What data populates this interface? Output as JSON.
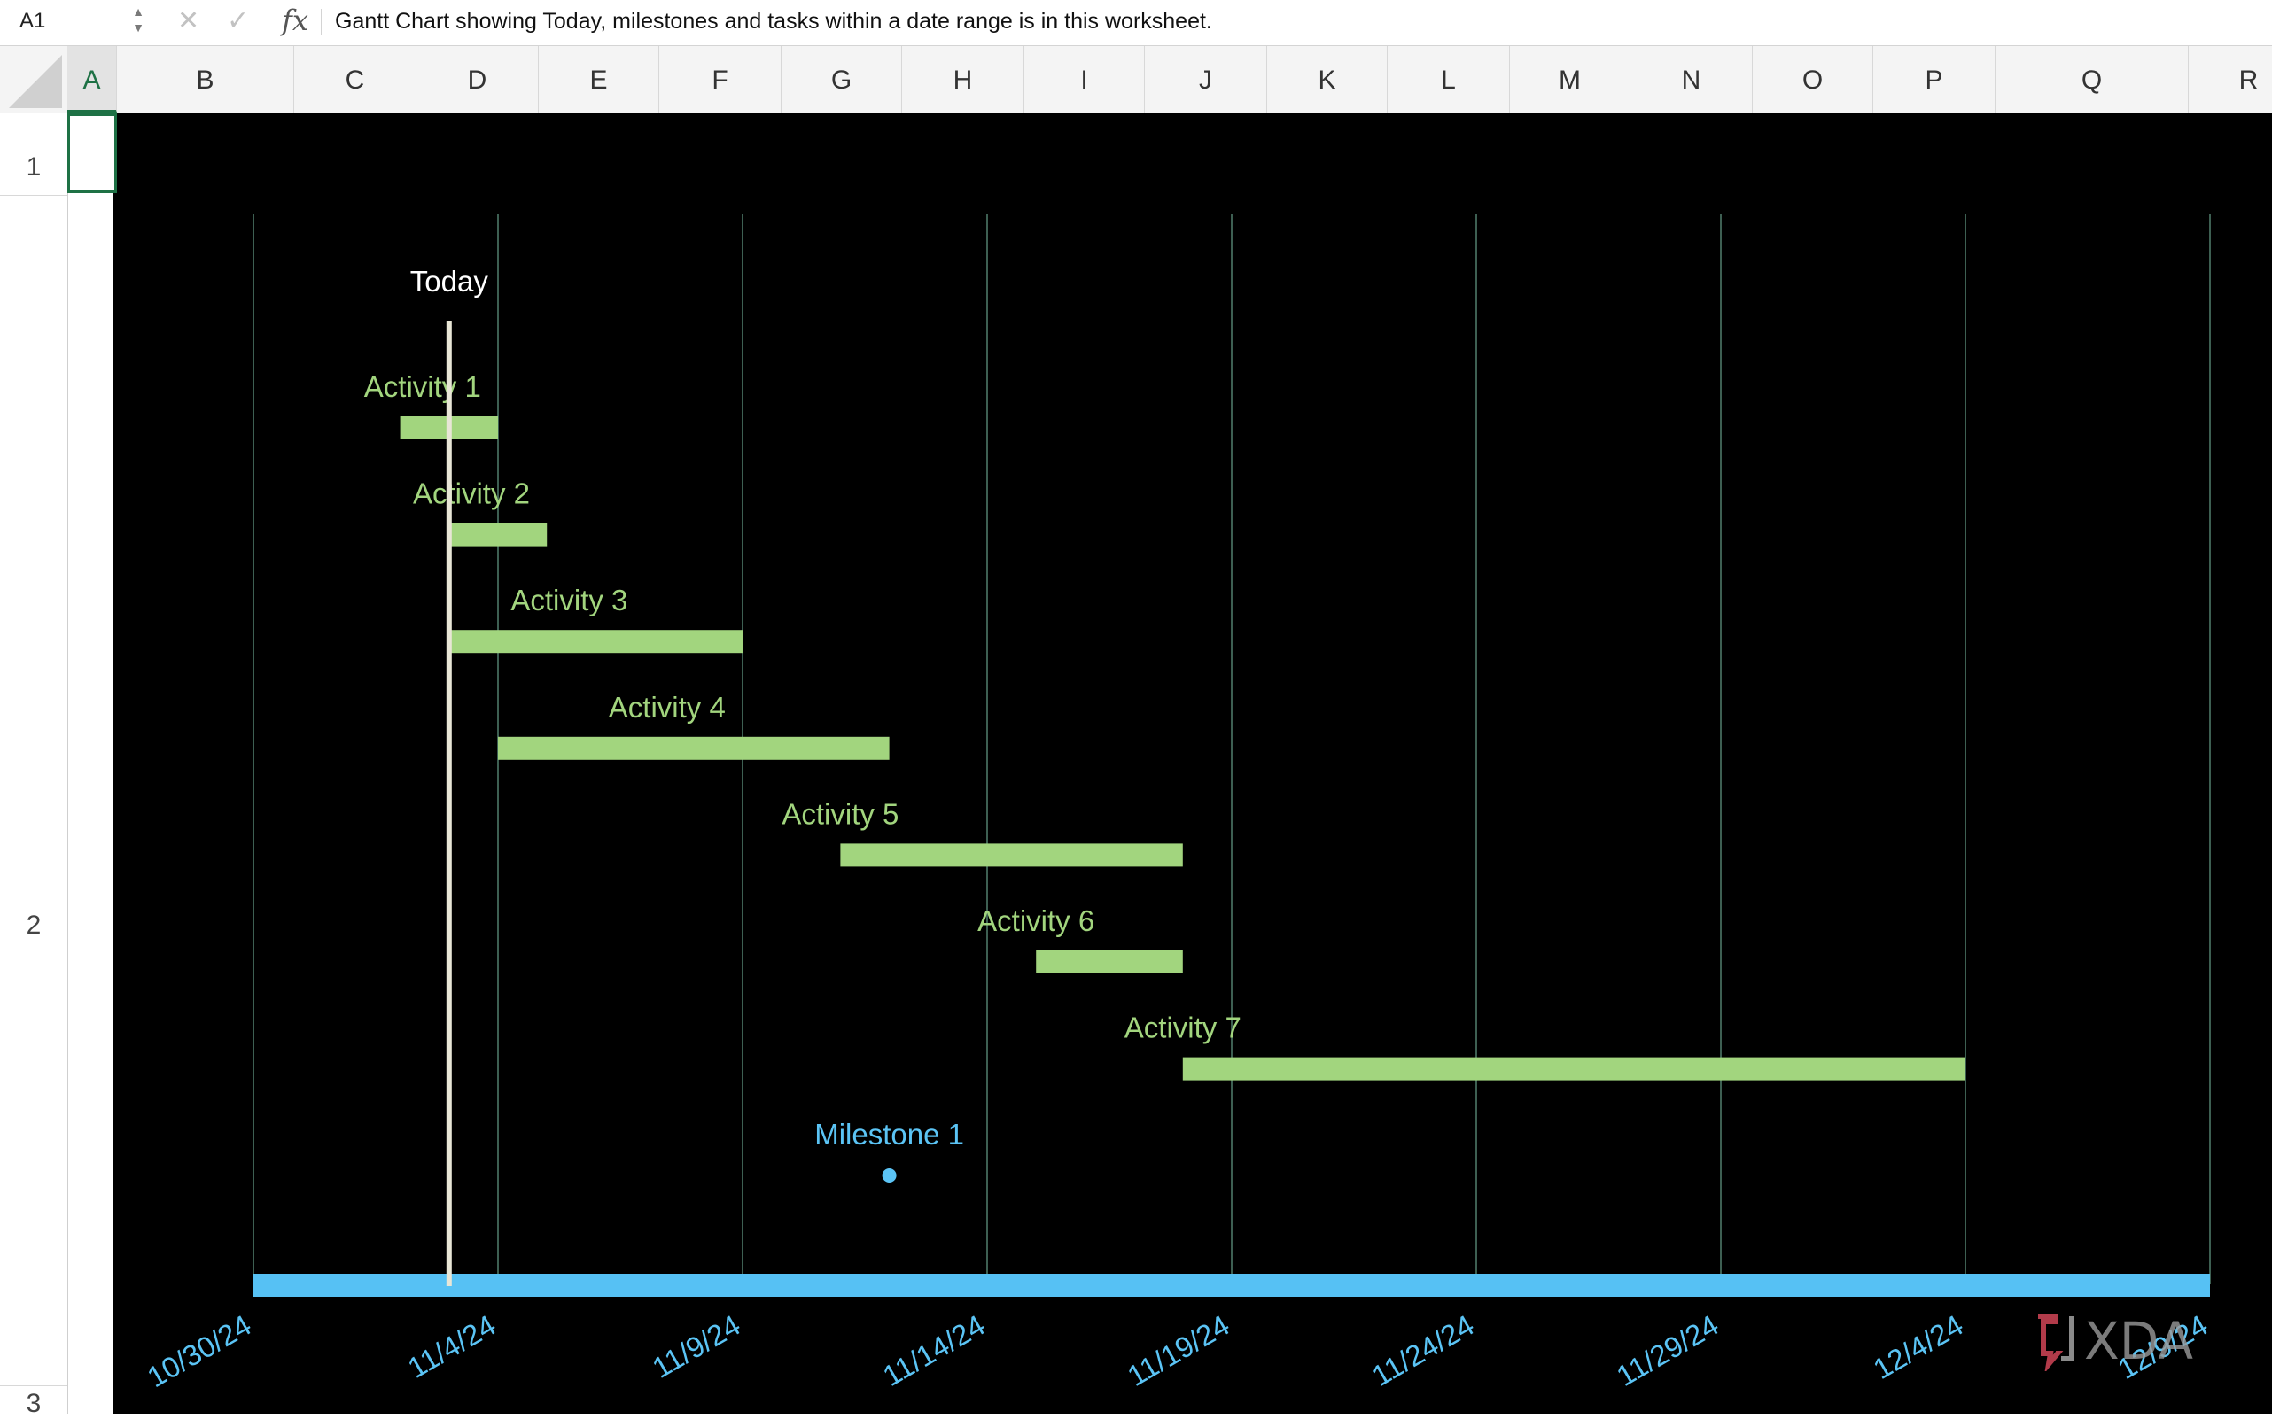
{
  "formula_bar": {
    "name_box": "A1",
    "cancel_icon": "x-icon",
    "enter_icon": "check-icon",
    "fx_label": "fx",
    "formula_text": "Gantt Chart showing Today, milestones and tasks within a date range is in this worksheet."
  },
  "columns": [
    "A",
    "B",
    "C",
    "D",
    "E",
    "F",
    "G",
    "H",
    "I",
    "J",
    "K",
    "L",
    "M",
    "N",
    "O",
    "P",
    "Q",
    "R"
  ],
  "active_column": "A",
  "rows": [
    "1",
    "2",
    "3"
  ],
  "colors": {
    "accent": "#1e7145",
    "bar": "#a2d57e",
    "milestone": "#5bc4f5",
    "axis_bar": "#56c1f4",
    "gridline": "#3d5f52",
    "today_line": "#e8e6d6",
    "background": "#000000"
  },
  "chart_data": {
    "type": "gantt",
    "x_tick_labels": [
      "10/30/24",
      "11/4/24",
      "11/9/24",
      "11/14/24",
      "11/19/24",
      "11/24/24",
      "11/29/24",
      "12/4/24",
      "12/9/24"
    ],
    "xlim": [
      "2024-10-30",
      "2024-12-09"
    ],
    "grid": true,
    "today": {
      "label": "Today",
      "date": "2024-11-03"
    },
    "tasks": [
      {
        "name": "Activity 1",
        "start": "2024-11-02",
        "end": "2024-11-04"
      },
      {
        "name": "Activity 2",
        "start": "2024-11-03",
        "end": "2024-11-05"
      },
      {
        "name": "Activity 3",
        "start": "2024-11-03",
        "end": "2024-11-09"
      },
      {
        "name": "Activity 4",
        "start": "2024-11-04",
        "end": "2024-11-12"
      },
      {
        "name": "Activity 5",
        "start": "2024-11-11",
        "end": "2024-11-18"
      },
      {
        "name": "Activity 6",
        "start": "2024-11-15",
        "end": "2024-11-18"
      },
      {
        "name": "Activity 7",
        "start": "2024-11-18",
        "end": "2024-12-04"
      }
    ],
    "milestones": [
      {
        "name": "Milestone 1",
        "date": "2024-11-12"
      }
    ]
  },
  "watermark": "XDA"
}
